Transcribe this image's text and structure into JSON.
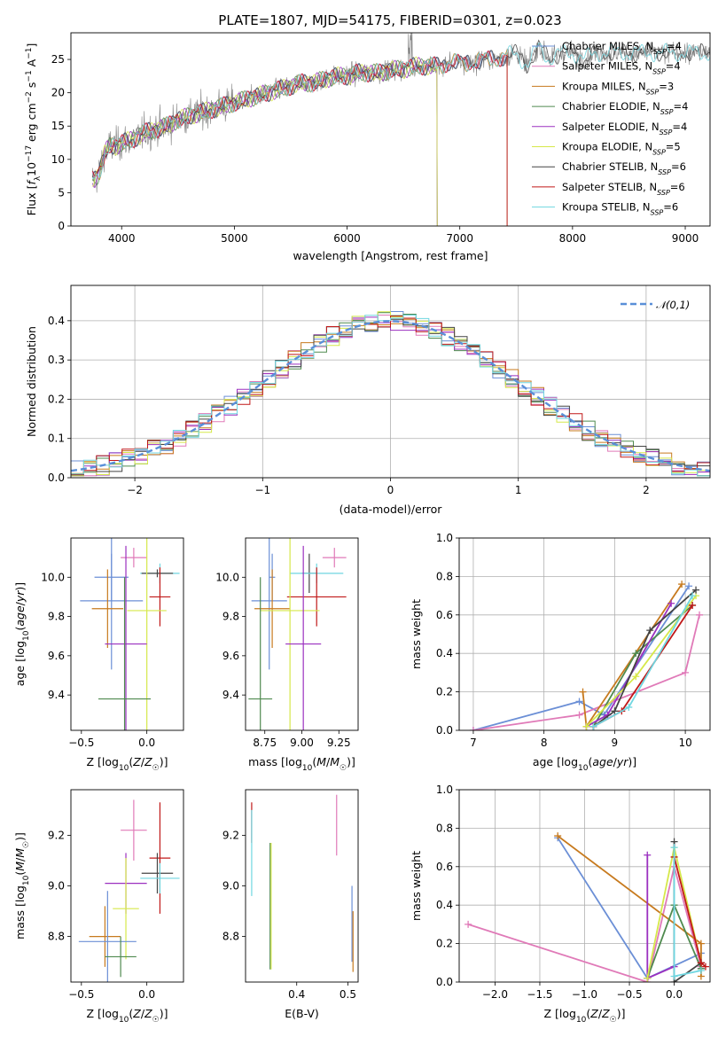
{
  "title": "PLATE=1807, MJD=54175, FIBERID=0301, z=0.023",
  "colors": {
    "Chabrier MILES": "#6b8fd6",
    "Salpeter MILES": "#e07ab8",
    "Kroupa MILES": "#c77a1e",
    "Chabrier ELODIE": "#4f8a4f",
    "Salpeter ELODIE": "#9b30c0",
    "Kroupa ELODIE": "#d6e84a",
    "Chabrier STELIB": "#444444",
    "Salpeter STELIB": "#c01818",
    "Kroupa STELIB": "#6fd6e0"
  },
  "chart_data": [
    {
      "id": "spectrum",
      "type": "line",
      "xlabel": "wavelength [Angstrom, rest frame]",
      "ylabel": "Flux [f_λ10^-17 erg cm^-2 s^-1 A^-1]",
      "xlim": [
        3550,
        9220
      ],
      "ylim": [
        0,
        29
      ],
      "xticks": [
        4000,
        5000,
        6000,
        7000,
        8000,
        9000
      ],
      "yticks": [
        0,
        5,
        10,
        15,
        20,
        25
      ],
      "legend_position": "upper right",
      "observed_spectrum": {
        "x": [
          3760,
          3800,
          3850,
          3900,
          3950,
          4000,
          4100,
          4200,
          4300,
          4400,
          4500,
          4600,
          4700,
          4800,
          4900,
          5000,
          5100,
          5200,
          5300,
          5400,
          5500,
          5600,
          5700,
          5800,
          5900,
          6000,
          6100,
          6200,
          6300,
          6400,
          6500,
          6600,
          6700,
          6800,
          6900,
          7000,
          7100,
          7200,
          7300,
          7400,
          7500,
          7600,
          7700,
          7800,
          7900,
          8000,
          8100,
          8200,
          8300,
          8400,
          8500,
          8600,
          8700,
          8800,
          8900,
          9000,
          9100,
          9200
        ],
        "y": [
          7,
          8,
          11,
          12,
          12,
          12.5,
          13,
          14,
          14.5,
          15,
          16,
          16.5,
          17,
          17.5,
          18,
          18.5,
          19,
          19.5,
          20,
          20.5,
          21,
          21.5,
          21.5,
          22,
          22.5,
          22.5,
          23,
          23,
          23,
          23.5,
          23.5,
          24,
          24,
          24,
          24.5,
          24.5,
          24.5,
          25,
          25,
          25.5,
          26,
          24,
          27,
          25,
          26,
          26,
          25,
          26,
          26,
          26,
          26,
          26,
          26,
          26,
          26,
          26,
          26,
          26
        ]
      },
      "series": [
        {
          "name": "Chabrier MILES",
          "n_ssp": "4",
          "x_end": 7420
        },
        {
          "name": "Salpeter MILES",
          "n_ssp": "4",
          "x_end": 7420
        },
        {
          "name": "Kroupa MILES",
          "n_ssp": "3",
          "x_end": 7420
        },
        {
          "name": "Chabrier ELODIE",
          "n_ssp": "4",
          "x_end": 6800
        },
        {
          "name": "Salpeter ELODIE",
          "n_ssp": "4",
          "x_end": 6800
        },
        {
          "name": "Kroupa ELODIE",
          "n_ssp": "5",
          "x_end": 6800
        },
        {
          "name": "Chabrier STELIB",
          "n_ssp": "6",
          "x_end": 9220
        },
        {
          "name": "Salpeter STELIB",
          "n_ssp": "6",
          "x_end": 7420
        },
        {
          "name": "Kroupa STELIB",
          "n_ssp": "6",
          "x_end": 9220
        }
      ]
    },
    {
      "id": "residuals",
      "type": "histogram",
      "xlabel": "(data-model)/error",
      "ylabel": "Normed distribution",
      "xlim": [
        -2.5,
        2.5
      ],
      "ylim": [
        0,
        0.49
      ],
      "xticks": [
        -2,
        -1,
        0,
        1,
        2
      ],
      "yticks": [
        0.0,
        0.1,
        0.2,
        0.3,
        0.4
      ],
      "grid": true,
      "reference_curve": {
        "label": "𝒩(0,1)",
        "type": "normal pdf"
      },
      "legend_position": "upper right"
    },
    {
      "id": "age_vs_Z",
      "type": "errorbar",
      "xlabel": "Z [log10(Z/Z☉)]",
      "ylabel": "age [log10(age/yr)]",
      "xlim": [
        -0.58,
        0.28
      ],
      "ylim": [
        9.22,
        10.2
      ],
      "xticks": [
        -0.5,
        0.0
      ],
      "yticks": [
        9.4,
        9.6,
        9.8,
        10.0
      ],
      "points": [
        {
          "series": "Salpeter MILES",
          "x": -0.1,
          "xerr": 0.1,
          "y": 10.1,
          "yerr": 0.05
        },
        {
          "series": "Chabrier MILES",
          "x": -0.27,
          "xerr": 0.13,
          "y": 10.0,
          "yerr": 0.12
        },
        {
          "series": "Kroupa STELIB",
          "x": 0.1,
          "xerr": 0.15,
          "y": 10.02,
          "yerr": 0.05
        },
        {
          "series": "Chabrier STELIB",
          "x": 0.08,
          "xerr": 0.12,
          "y": 10.02,
          "yerr": 0.02
        },
        {
          "series": "Salpeter STELIB",
          "x": 0.1,
          "xerr": 0.08,
          "y": 9.9,
          "yerr": 0.15
        },
        {
          "series": "Chabrier MILES",
          "x": -0.27,
          "xerr": 0.24,
          "y": 9.88,
          "yerr": 0.35
        },
        {
          "series": "Kroupa MILES",
          "x": -0.3,
          "xerr": 0.12,
          "y": 9.84,
          "yerr": 0.2
        },
        {
          "series": "Kroupa ELODIE",
          "x": 0.0,
          "xerr": 0.15,
          "y": 9.83,
          "yerr": 0.62
        },
        {
          "series": "Salpeter ELODIE",
          "x": -0.16,
          "xerr": 0.16,
          "y": 9.66,
          "yerr": 0.5
        },
        {
          "series": "Chabrier ELODIE",
          "x": -0.17,
          "xerr": 0.2,
          "y": 9.38,
          "yerr": 0.62
        }
      ]
    },
    {
      "id": "age_vs_mass",
      "type": "errorbar",
      "xlabel": "mass [log10(M/M☉)]",
      "ylabel": "",
      "xlim": [
        8.62,
        9.38
      ],
      "ylim": [
        9.22,
        10.2
      ],
      "xticks": [
        8.75,
        9.0,
        9.25
      ],
      "yticks": [
        9.4,
        9.6,
        9.8,
        10.0
      ],
      "points": [
        {
          "series": "Salpeter MILES",
          "x": 9.22,
          "xerr": 0.08,
          "y": 10.1,
          "yerr": 0.05
        },
        {
          "series": "Chabrier MILES",
          "x": 8.8,
          "xerr": 0.02,
          "y": 10.0,
          "yerr": 0.12
        },
        {
          "series": "Chabrier STELIB",
          "x": 9.05,
          "xerr": 0.05,
          "y": 10.02,
          "yerr": 0.1
        },
        {
          "series": "Kroupa STELIB",
          "x": 9.1,
          "xerr": 0.18,
          "y": 10.02,
          "yerr": 0.05
        },
        {
          "series": "Salpeter STELIB",
          "x": 9.1,
          "xerr": 0.2,
          "y": 9.9,
          "yerr": 0.15
        },
        {
          "series": "Chabrier MILES",
          "x": 8.78,
          "xerr": 0.12,
          "y": 9.88,
          "yerr": 0.35
        },
        {
          "series": "Kroupa MILES",
          "x": 8.8,
          "xerr": 0.12,
          "y": 9.84,
          "yerr": 0.2
        },
        {
          "series": "Kroupa ELODIE",
          "x": 8.92,
          "xerr": 0.2,
          "y": 9.83,
          "yerr": 0.62
        },
        {
          "series": "Salpeter ELODIE",
          "x": 9.01,
          "xerr": 0.12,
          "y": 9.66,
          "yerr": 0.5
        },
        {
          "series": "Chabrier ELODIE",
          "x": 8.72,
          "xerr": 0.08,
          "y": 9.38,
          "yerr": 0.62
        }
      ]
    },
    {
      "id": "weight_vs_age",
      "type": "line",
      "xlabel": "age [log10(age/yr)]",
      "ylabel": "mass weight",
      "xlim": [
        6.8,
        10.35
      ],
      "ylim": [
        0,
        1.0
      ],
      "xticks": [
        7,
        8,
        9,
        10
      ],
      "yticks": [
        0.0,
        0.2,
        0.4,
        0.6,
        0.8,
        1.0
      ],
      "grid": true,
      "series": [
        {
          "name": "Chabrier MILES",
          "x": [
            7.0,
            8.5,
            8.85,
            10.05
          ],
          "y": [
            0.0,
            0.15,
            0.08,
            0.75
          ]
        },
        {
          "name": "Salpeter MILES",
          "x": [
            7.0,
            8.5,
            10.0,
            10.2
          ],
          "y": [
            0.0,
            0.08,
            0.3,
            0.6
          ]
        },
        {
          "name": "Kroupa MILES",
          "x": [
            8.55,
            8.6,
            9.95
          ],
          "y": [
            0.2,
            0.02,
            0.76
          ]
        },
        {
          "name": "Chabrier ELODIE",
          "x": [
            8.7,
            9.3,
            10.1
          ],
          "y": [
            0.02,
            0.4,
            0.65
          ]
        },
        {
          "name": "Salpeter ELODIE",
          "x": [
            8.6,
            8.9,
            9.8
          ],
          "y": [
            0.02,
            0.08,
            0.66
          ]
        },
        {
          "name": "Kroupa ELODIE",
          "x": [
            8.6,
            9.3,
            10.15
          ],
          "y": [
            0.02,
            0.28,
            0.7
          ]
        },
        {
          "name": "Chabrier STELIB",
          "x": [
            8.7,
            9.0,
            9.5,
            10.15
          ],
          "y": [
            0.02,
            0.1,
            0.52,
            0.73
          ]
        },
        {
          "name": "Salpeter STELIB",
          "x": [
            8.7,
            9.1,
            10.1
          ],
          "y": [
            0.02,
            0.1,
            0.65
          ]
        },
        {
          "name": "Kroupa STELIB",
          "x": [
            8.7,
            9.2,
            10.1
          ],
          "y": [
            0.02,
            0.12,
            0.7
          ]
        }
      ]
    },
    {
      "id": "mass_vs_Z",
      "type": "errorbar",
      "xlabel": "Z [log10(Z/Z☉)]",
      "ylabel": "mass [log10(M/M☉)]",
      "xlim": [
        -0.58,
        0.28
      ],
      "ylim": [
        8.62,
        9.38
      ],
      "xticks": [
        -0.5,
        0.0
      ],
      "yticks": [
        8.8,
        9.0,
        9.2
      ],
      "points": [
        {
          "series": "Salpeter MILES",
          "x": -0.1,
          "xerr": 0.1,
          "y": 9.22,
          "yerr": 0.12
        },
        {
          "series": "Salpeter STELIB",
          "x": 0.1,
          "xerr": 0.08,
          "y": 9.11,
          "yerr": 0.22
        },
        {
          "series": "Chabrier STELIB",
          "x": 0.08,
          "xerr": 0.12,
          "y": 9.05,
          "yerr": 0.08
        },
        {
          "series": "Kroupa STELIB",
          "x": 0.1,
          "xerr": 0.15,
          "y": 9.03,
          "yerr": 0.06
        },
        {
          "series": "Salpeter ELODIE",
          "x": -0.16,
          "xerr": 0.16,
          "y": 9.01,
          "yerr": 0.12
        },
        {
          "series": "Kroupa ELODIE",
          "x": -0.16,
          "xerr": 0.1,
          "y": 8.91,
          "yerr": 0.2
        },
        {
          "series": "Kroupa MILES",
          "x": -0.32,
          "xerr": 0.12,
          "y": 8.8,
          "yerr": 0.12
        },
        {
          "series": "Chabrier MILES",
          "x": -0.3,
          "xerr": 0.22,
          "y": 8.78,
          "yerr": 0.2
        },
        {
          "series": "Chabrier ELODIE",
          "x": -0.2,
          "xerr": 0.12,
          "y": 8.72,
          "yerr": 0.08
        }
      ]
    },
    {
      "id": "mass_vs_ebv",
      "type": "errorbar",
      "xlabel": "E(B-V)",
      "ylabel": "",
      "xlim": [
        0.3,
        0.52
      ],
      "ylim": [
        8.62,
        9.38
      ],
      "xticks": [
        0.4,
        0.5
      ],
      "yticks": [
        8.8,
        9.0,
        9.2
      ],
      "points": [
        {
          "series": "Salpeter MILES",
          "x": 0.478,
          "y": 9.24,
          "yerr": 0.12
        },
        {
          "series": "Salpeter STELIB",
          "x": 0.312,
          "y": 9.25,
          "yerr": 0.08
        },
        {
          "series": "Kroupa STELIB",
          "x": 0.312,
          "y": 9.13,
          "yerr": 0.17
        },
        {
          "series": "Chabrier ELODIE",
          "x": 0.348,
          "y": 8.92,
          "yerr": 0.25
        },
        {
          "series": "Kroupa ELODIE",
          "x": 0.35,
          "y": 8.92,
          "yerr": 0.25
        },
        {
          "series": "Chabrier MILES",
          "x": 0.508,
          "y": 8.85,
          "yerr": 0.15
        },
        {
          "series": "Kroupa MILES",
          "x": 0.51,
          "y": 8.78,
          "yerr": 0.12
        }
      ]
    },
    {
      "id": "weight_vs_Z",
      "type": "line",
      "xlabel": "Z [log10(Z/Z☉)]",
      "ylabel": "mass weight",
      "xlim": [
        -2.4,
        0.4
      ],
      "ylim": [
        0,
        1.0
      ],
      "xticks": [
        -2.0,
        -1.5,
        -1.0,
        -0.5,
        0.0
      ],
      "yticks": [
        0.0,
        0.2,
        0.4,
        0.6,
        0.8,
        1.0
      ],
      "grid": true,
      "series": [
        {
          "name": "Chabrier MILES",
          "x": [
            -1.3,
            -0.3,
            0.3,
            0.3
          ],
          "y": [
            0.75,
            0.02,
            0.15,
            0.07
          ]
        },
        {
          "name": "Salpeter MILES",
          "x": [
            -2.3,
            -0.3,
            0.0,
            0.3
          ],
          "y": [
            0.3,
            0.0,
            0.6,
            0.08
          ]
        },
        {
          "name": "Kroupa MILES",
          "x": [
            -1.3,
            0.3,
            0.3
          ],
          "y": [
            0.76,
            0.2,
            0.03
          ]
        },
        {
          "name": "Chabrier ELODIE",
          "x": [
            -0.3,
            0.0,
            0.3
          ],
          "y": [
            0.02,
            0.4,
            0.07
          ]
        },
        {
          "name": "Salpeter ELODIE",
          "x": [
            -0.3,
            -0.3,
            0.0
          ],
          "y": [
            0.66,
            0.02,
            0.08
          ]
        },
        {
          "name": "Kroupa ELODIE",
          "x": [
            -0.3,
            0.0,
            0.3
          ],
          "y": [
            0.02,
            0.7,
            0.1
          ]
        },
        {
          "name": "Chabrier STELIB",
          "x": [
            0.0,
            0.0,
            0.3
          ],
          "y": [
            0.73,
            0.0,
            0.1
          ]
        },
        {
          "name": "Salpeter STELIB",
          "x": [
            0.0,
            0.3,
            0.35
          ],
          "y": [
            0.65,
            0.1,
            0.08
          ]
        },
        {
          "name": "Kroupa STELIB",
          "x": [
            0.0,
            0.0,
            0.3
          ],
          "y": [
            0.7,
            0.03,
            0.06
          ]
        }
      ]
    }
  ]
}
